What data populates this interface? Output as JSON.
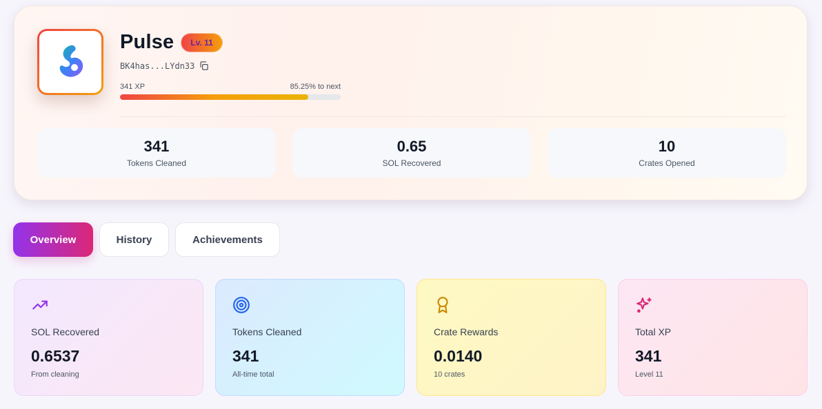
{
  "profile": {
    "name": "Pulse",
    "level_badge": "Lv. 11",
    "wallet": "BK4has...LYdn33",
    "copy_icon": "copy-icon",
    "xp_label": "341 XP",
    "xp_next_label": "85.25% to next",
    "xp_progress_percent": 85.25,
    "avatar_icon": "pulse-logo-icon"
  },
  "stats": [
    {
      "value": "341",
      "label": "Tokens Cleaned"
    },
    {
      "value": "0.65",
      "label": "SOL Recovered"
    },
    {
      "value": "10",
      "label": "Crates Opened"
    }
  ],
  "tabs": [
    {
      "label": "Overview",
      "active": true
    },
    {
      "label": "History",
      "active": false
    },
    {
      "label": "Achievements",
      "active": false
    }
  ],
  "metrics": [
    {
      "icon": "trending-up-icon",
      "title": "SOL Recovered",
      "value": "0.6537",
      "sub": "From cleaning",
      "color": "#9333ea"
    },
    {
      "icon": "target-icon",
      "title": "Tokens Cleaned",
      "value": "341",
      "sub": "All-time total",
      "color": "#2563eb"
    },
    {
      "icon": "award-icon",
      "title": "Crate Rewards",
      "value": "0.0140",
      "sub": "10 crates",
      "color": "#ca8a04"
    },
    {
      "icon": "sparkles-icon",
      "title": "Total XP",
      "value": "341",
      "sub": "Level 11",
      "color": "#db2777"
    }
  ]
}
